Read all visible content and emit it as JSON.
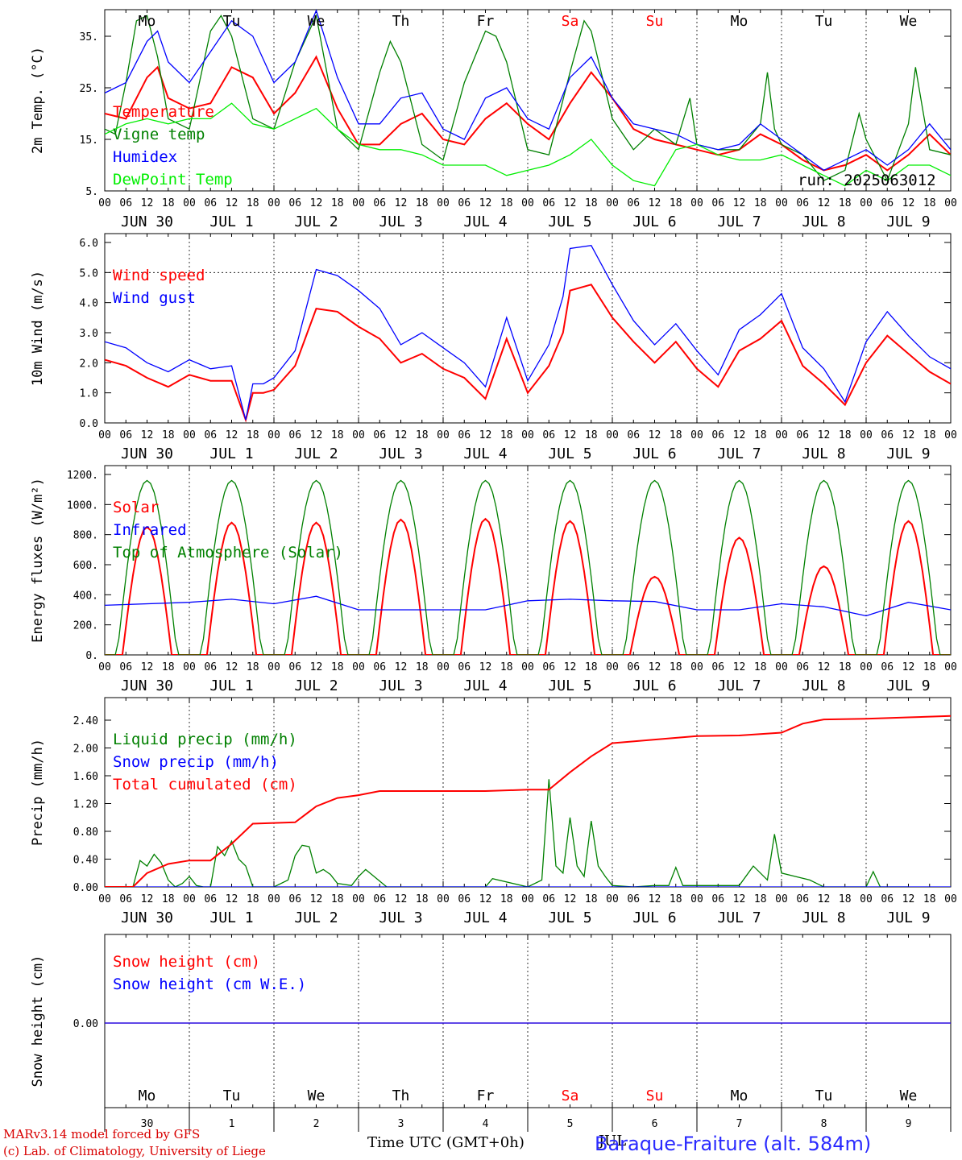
{
  "chart_data": [
    {
      "type": "line",
      "id": "temp",
      "ylabel": "2m Temp. (°C)",
      "yticks": [
        "5.",
        "15.",
        "25.",
        "35."
      ],
      "ytick_values": [
        5,
        15,
        25,
        35
      ],
      "ylim": [
        5,
        40
      ],
      "hline": null,
      "annotation": "run: 2025063012",
      "series": [
        {
          "name": "Temperature",
          "color": "#ff0000",
          "x": [
            0,
            6,
            12,
            15,
            18,
            24,
            30,
            36,
            42,
            48,
            54,
            60,
            66,
            72,
            78,
            84,
            90,
            96,
            102,
            108,
            114,
            120,
            126,
            132,
            138,
            144,
            150,
            156,
            162,
            168,
            174,
            180,
            186,
            192,
            198,
            204,
            210,
            216,
            222,
            228,
            234,
            240
          ],
          "y": [
            20,
            19,
            27,
            29,
            23,
            21,
            22,
            29,
            27,
            20,
            24,
            31,
            21,
            14,
            14,
            18,
            20,
            15,
            14,
            19,
            22,
            18,
            15,
            22,
            28,
            23,
            17,
            15,
            14,
            13,
            12,
            13,
            16,
            14,
            11,
            9,
            10,
            12,
            9,
            12,
            16,
            12
          ]
        },
        {
          "name": "Vigne temp",
          "color": "#008000",
          "x": [
            0,
            3,
            6,
            9,
            12,
            15,
            18,
            24,
            30,
            33,
            36,
            42,
            48,
            54,
            60,
            66,
            72,
            78,
            81,
            84,
            90,
            96,
            102,
            108,
            111,
            114,
            120,
            126,
            132,
            136,
            138,
            144,
            150,
            156,
            162,
            166,
            168,
            174,
            180,
            186,
            188,
            190,
            192,
            198,
            204,
            210,
            214,
            216,
            222,
            228,
            230,
            232,
            234,
            240
          ],
          "y": [
            17,
            16,
            26,
            38,
            39,
            31,
            19,
            17,
            36,
            39,
            35,
            19,
            17,
            30,
            39,
            17,
            13,
            28,
            34,
            30,
            14,
            11,
            26,
            36,
            35,
            30,
            13,
            12,
            28,
            38,
            36,
            19,
            13,
            17,
            14,
            23,
            14,
            13,
            13,
            18,
            28,
            17,
            14,
            12,
            7,
            9,
            20,
            15,
            7,
            18,
            29,
            21,
            13,
            12
          ]
        },
        {
          "name": "Humidex",
          "color": "#0000ff",
          "x": [
            0,
            6,
            12,
            15,
            18,
            24,
            30,
            36,
            42,
            48,
            54,
            60,
            66,
            72,
            78,
            84,
            90,
            96,
            102,
            108,
            114,
            120,
            126,
            132,
            138,
            144,
            150,
            156,
            162,
            168,
            174,
            180,
            186,
            192,
            198,
            204,
            210,
            216,
            222,
            228,
            234,
            240
          ],
          "y": [
            24,
            26,
            34,
            36,
            30,
            26,
            32,
            38,
            35,
            26,
            30,
            40,
            27,
            18,
            18,
            23,
            24,
            17,
            15,
            23,
            25,
            19,
            17,
            27,
            31,
            23,
            18,
            17,
            16,
            14,
            13,
            14,
            18,
            15,
            12,
            9,
            11,
            13,
            10,
            13,
            18,
            13
          ]
        },
        {
          "name": "DewPoint Temp",
          "color": "#00ee00",
          "x": [
            0,
            6,
            12,
            18,
            24,
            30,
            36,
            42,
            48,
            54,
            60,
            66,
            72,
            78,
            84,
            90,
            96,
            102,
            108,
            114,
            120,
            126,
            132,
            138,
            144,
            150,
            156,
            162,
            168,
            174,
            180,
            186,
            192,
            198,
            204,
            210,
            216,
            222,
            228,
            234,
            240
          ],
          "y": [
            16,
            18,
            19,
            18,
            19,
            19,
            22,
            18,
            17,
            19,
            21,
            17,
            14,
            13,
            13,
            12,
            10,
            10,
            10,
            8,
            9,
            10,
            12,
            15,
            10,
            7,
            6,
            13,
            14,
            12,
            11,
            11,
            12,
            10,
            8,
            6,
            9,
            7,
            10,
            10,
            8
          ]
        }
      ]
    },
    {
      "type": "line",
      "id": "wind",
      "ylabel": "10m Wind (m/s)",
      "yticks": [
        "0.0",
        "1.0",
        "2.0",
        "3.0",
        "4.0",
        "5.0",
        "6.0"
      ],
      "ytick_values": [
        0,
        1,
        2,
        3,
        4,
        5,
        6
      ],
      "ylim": [
        0,
        6
      ],
      "hline": 5,
      "series": [
        {
          "name": "Wind speed",
          "color": "#ff0000",
          "x": [
            0,
            6,
            12,
            18,
            24,
            30,
            36,
            40,
            42,
            45,
            48,
            54,
            60,
            66,
            72,
            78,
            84,
            90,
            96,
            102,
            108,
            114,
            120,
            126,
            130,
            132,
            138,
            144,
            150,
            156,
            162,
            168,
            174,
            180,
            186,
            192,
            198,
            204,
            210,
            216,
            222,
            228,
            234,
            240
          ],
          "y": [
            2.1,
            1.9,
            1.5,
            1.2,
            1.6,
            1.4,
            1.4,
            0.1,
            1.0,
            1.0,
            1.1,
            1.9,
            3.8,
            3.7,
            3.2,
            2.8,
            2.0,
            2.3,
            1.8,
            1.5,
            0.8,
            2.8,
            1.0,
            1.9,
            3.0,
            4.4,
            4.6,
            3.5,
            2.7,
            2.0,
            2.7,
            1.8,
            1.2,
            2.4,
            2.8,
            3.4,
            1.9,
            1.3,
            0.6,
            2.0,
            2.9,
            2.3,
            1.7,
            1.3
          ]
        },
        {
          "name": "Wind gust",
          "color": "#0000ff",
          "x": [
            0,
            6,
            12,
            18,
            24,
            30,
            36,
            40,
            42,
            45,
            48,
            54,
            60,
            66,
            72,
            78,
            84,
            90,
            96,
            102,
            108,
            114,
            120,
            126,
            130,
            132,
            138,
            144,
            150,
            156,
            162,
            168,
            174,
            180,
            186,
            192,
            198,
            204,
            210,
            216,
            222,
            228,
            234,
            240
          ],
          "y": [
            2.7,
            2.5,
            2.0,
            1.7,
            2.1,
            1.8,
            1.9,
            0.1,
            1.3,
            1.3,
            1.5,
            2.4,
            5.1,
            4.9,
            4.4,
            3.8,
            2.6,
            3.0,
            2.5,
            2.0,
            1.2,
            3.5,
            1.4,
            2.6,
            4.2,
            5.8,
            5.9,
            4.6,
            3.4,
            2.6,
            3.3,
            2.4,
            1.6,
            3.1,
            3.6,
            4.3,
            2.5,
            1.8,
            0.7,
            2.7,
            3.7,
            2.9,
            2.2,
            1.8
          ]
        }
      ]
    },
    {
      "type": "line",
      "id": "energy",
      "ylabel": "Energy fluxes (W/m²)",
      "yticks": [
        "0.",
        "200.",
        "400.",
        "600.",
        "800.",
        "1000.",
        "1200."
      ],
      "ytick_values": [
        0,
        200,
        400,
        600,
        800,
        1000,
        1200
      ],
      "ylim": [
        0,
        1200
      ],
      "hline": null,
      "series": [
        {
          "name": "Solar",
          "color": "#ff0000",
          "daily_peak": [
            850,
            880,
            880,
            900,
            905,
            890,
            520,
            780,
            590,
            890
          ]
        },
        {
          "name": "Infrared",
          "color": "#0000ff",
          "x": [
            0,
            24,
            36,
            48,
            60,
            72,
            84,
            96,
            108,
            120,
            132,
            144,
            156,
            168,
            180,
            192,
            204,
            216,
            228,
            240
          ],
          "y": [
            330,
            350,
            370,
            340,
            390,
            300,
            300,
            300,
            300,
            360,
            370,
            360,
            355,
            300,
            300,
            340,
            320,
            260,
            350,
            300
          ]
        },
        {
          "name": "Top of Atmosphere (Solar)",
          "color": "#008000",
          "daily_peak": [
            1160,
            1160,
            1160,
            1160,
            1160,
            1160,
            1160,
            1160,
            1160,
            1160
          ]
        }
      ]
    },
    {
      "type": "line",
      "id": "precip",
      "ylabel": "Precip (mm/h)",
      "yticks": [
        "0.00",
        "0.40",
        "0.80",
        "1.20",
        "1.60",
        "2.00",
        "2.40"
      ],
      "ytick_values": [
        0,
        0.4,
        0.8,
        1.2,
        1.6,
        2.0,
        2.4
      ],
      "ylim": [
        0,
        2.6
      ],
      "hline": null,
      "series": [
        {
          "name": "Liquid precip (mm/h)",
          "color": "#008000",
          "x": [
            0,
            8,
            10,
            12,
            14,
            16,
            18,
            20,
            22,
            24,
            26,
            28,
            30,
            32,
            34,
            36,
            38,
            40,
            42,
            48,
            52,
            54,
            56,
            58,
            60,
            62,
            64,
            66,
            70,
            72,
            74,
            80,
            84,
            96,
            108,
            110,
            120,
            124,
            126,
            128,
            130,
            132,
            134,
            136,
            138,
            140,
            142,
            144,
            150,
            156,
            160,
            162,
            164,
            168,
            180,
            184,
            188,
            190,
            192,
            196,
            200,
            204,
            216,
            218,
            220,
            228
          ],
          "y": [
            0,
            0,
            0.38,
            0.3,
            0.47,
            0.35,
            0.1,
            0,
            0.05,
            0.15,
            0.02,
            0,
            0,
            0.58,
            0.45,
            0.66,
            0.4,
            0.3,
            0,
            0,
            0.1,
            0.45,
            0.6,
            0.58,
            0.2,
            0.25,
            0.18,
            0.05,
            0.02,
            0.15,
            0.25,
            0,
            0,
            0,
            0,
            0.12,
            0,
            0.1,
            1.55,
            0.3,
            0.2,
            1.0,
            0.3,
            0.15,
            0.95,
            0.3,
            0.15,
            0.02,
            0,
            0.02,
            0.02,
            0.28,
            0.02,
            0.02,
            0.02,
            0.3,
            0.1,
            0.76,
            0.2,
            0.15,
            0.1,
            0,
            0,
            0.22,
            0,
            0
          ]
        },
        {
          "name": "Snow precip (mm/h)",
          "color": "#0000ff",
          "x": [
            0,
            240
          ],
          "y": [
            0,
            0
          ]
        },
        {
          "name": "Total cumulated (cm)",
          "color": "#ff0000",
          "x": [
            0,
            8,
            12,
            18,
            24,
            30,
            36,
            42,
            48,
            54,
            60,
            66,
            72,
            78,
            84,
            96,
            108,
            120,
            126,
            132,
            138,
            144,
            156,
            168,
            180,
            192,
            198,
            204,
            216,
            228,
            240
          ],
          "y": [
            0,
            0,
            0.2,
            0.33,
            0.38,
            0.38,
            0.62,
            0.91,
            0.92,
            0.93,
            1.16,
            1.28,
            1.32,
            1.38,
            1.38,
            1.38,
            1.38,
            1.4,
            1.4,
            1.65,
            1.88,
            2.07,
            2.12,
            2.17,
            2.18,
            2.22,
            2.35,
            2.41,
            2.42,
            2.44,
            2.46
          ]
        }
      ]
    },
    {
      "type": "line",
      "id": "snow",
      "ylabel": "Snow height (cm)",
      "yticks": [
        "0.00"
      ],
      "ytick_values": [
        0
      ],
      "ylim": [
        -1,
        1
      ],
      "hline": null,
      "series": [
        {
          "name": "Snow height (cm)",
          "color": "#ff0000",
          "x": [
            0,
            240
          ],
          "y": [
            0,
            0
          ]
        },
        {
          "name": "Snow height (cm W.E.)",
          "color": "#0000ff",
          "x": [
            0,
            240
          ],
          "y": [
            0,
            0
          ]
        }
      ]
    }
  ],
  "axis": {
    "hour_ticks": [
      "00",
      "06",
      "12",
      "18"
    ],
    "end_tick": "00",
    "dates": [
      "JUN 30",
      "JUL  1",
      "JUL  2",
      "JUL  3",
      "JUL  4",
      "JUL  5",
      "JUL  6",
      "JUL  7",
      "JUL  8",
      "JUL  9"
    ],
    "days": [
      {
        "label": "Mo",
        "color": "#000000"
      },
      {
        "label": "Tu",
        "color": "#000000"
      },
      {
        "label": "We",
        "color": "#000000"
      },
      {
        "label": "Th",
        "color": "#000000"
      },
      {
        "label": "Fr",
        "color": "#000000"
      },
      {
        "label": "Sa",
        "color": "#ff0000"
      },
      {
        "label": "Su",
        "color": "#ff0000"
      },
      {
        "label": "Mo",
        "color": "#000000"
      },
      {
        "label": "Tu",
        "color": "#000000"
      },
      {
        "label": "We",
        "color": "#000000"
      }
    ],
    "day_numbers": [
      "30",
      "1",
      "2",
      "3",
      "4",
      "5",
      "6",
      "7",
      "8",
      "9"
    ],
    "month_label": "JUL"
  },
  "footer": {
    "model_line": "MARv3.14 model forced by GFS",
    "lab_line": "(c) Lab. of Climatology, University of Liege",
    "xaxis_title": "Time UTC (GMT+0h)",
    "station": "Baraque-Fraiture (alt. 584m)"
  }
}
